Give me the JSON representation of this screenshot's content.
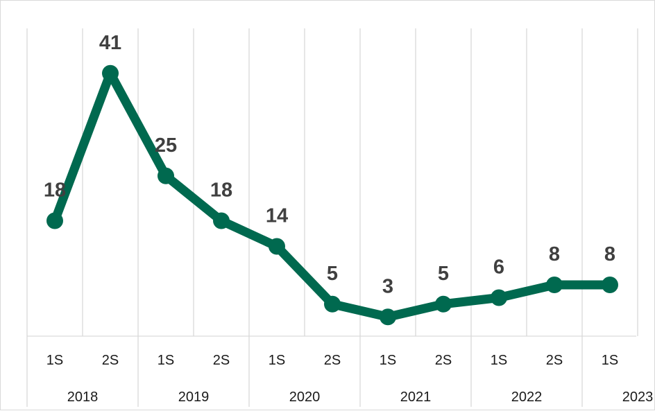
{
  "chart_data": {
    "type": "line",
    "title": "",
    "xlabel": "",
    "ylabel": "",
    "ylim": [
      0,
      48
    ],
    "grid": true,
    "legend": "none",
    "categories": [
      "1S",
      "2S",
      "1S",
      "2S",
      "1S",
      "2S",
      "1S",
      "2S",
      "1S",
      "2S",
      "1S"
    ],
    "groups": [
      {
        "label": "2018",
        "count": 2
      },
      {
        "label": "2019",
        "count": 2
      },
      {
        "label": "2020",
        "count": 2
      },
      {
        "label": "2021",
        "count": 2
      },
      {
        "label": "2022",
        "count": 2
      },
      {
        "label": "2023",
        "count": 1
      }
    ],
    "series": [
      {
        "color": "#00694f",
        "values": [
          18,
          41,
          25,
          18,
          14,
          5,
          3,
          5,
          6,
          8,
          8
        ],
        "data_labels": [
          "18",
          "41",
          "25",
          "18",
          "14",
          "5",
          "3",
          "5",
          "6",
          "8",
          "8"
        ]
      }
    ]
  }
}
